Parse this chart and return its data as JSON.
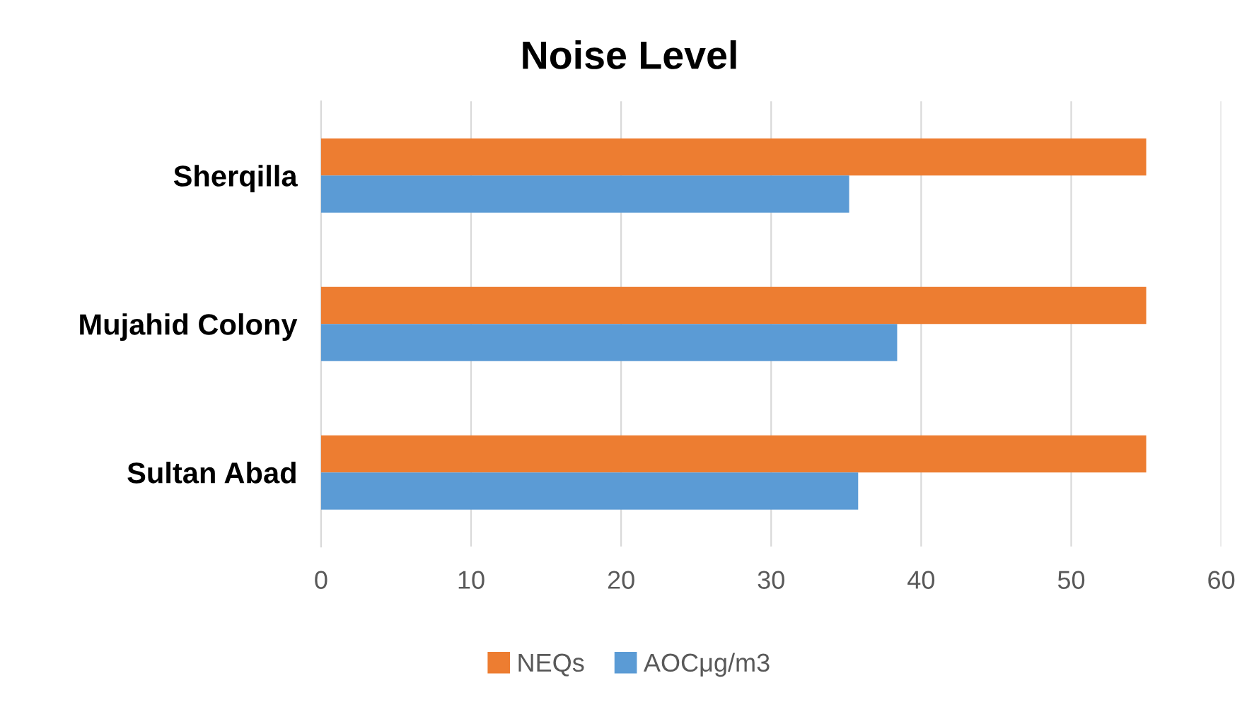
{
  "chart_data": {
    "type": "bar",
    "title": "Noise Level",
    "orientation": "horizontal",
    "categories": [
      "Sherqilla",
      "Mujahid Colony",
      "Sultan Abad"
    ],
    "series": [
      {
        "name": "NEQs",
        "color": "#ed7d31",
        "values": [
          55,
          55,
          55
        ]
      },
      {
        "name": "AOCμg/m3",
        "color": "#5b9bd5",
        "values": [
          35.2,
          38.4,
          35.8
        ]
      }
    ],
    "xlim": [
      0,
      60
    ],
    "xticks": [
      0,
      10,
      20,
      30,
      40,
      50,
      60
    ],
    "grid": "x",
    "legend": "bottom"
  }
}
